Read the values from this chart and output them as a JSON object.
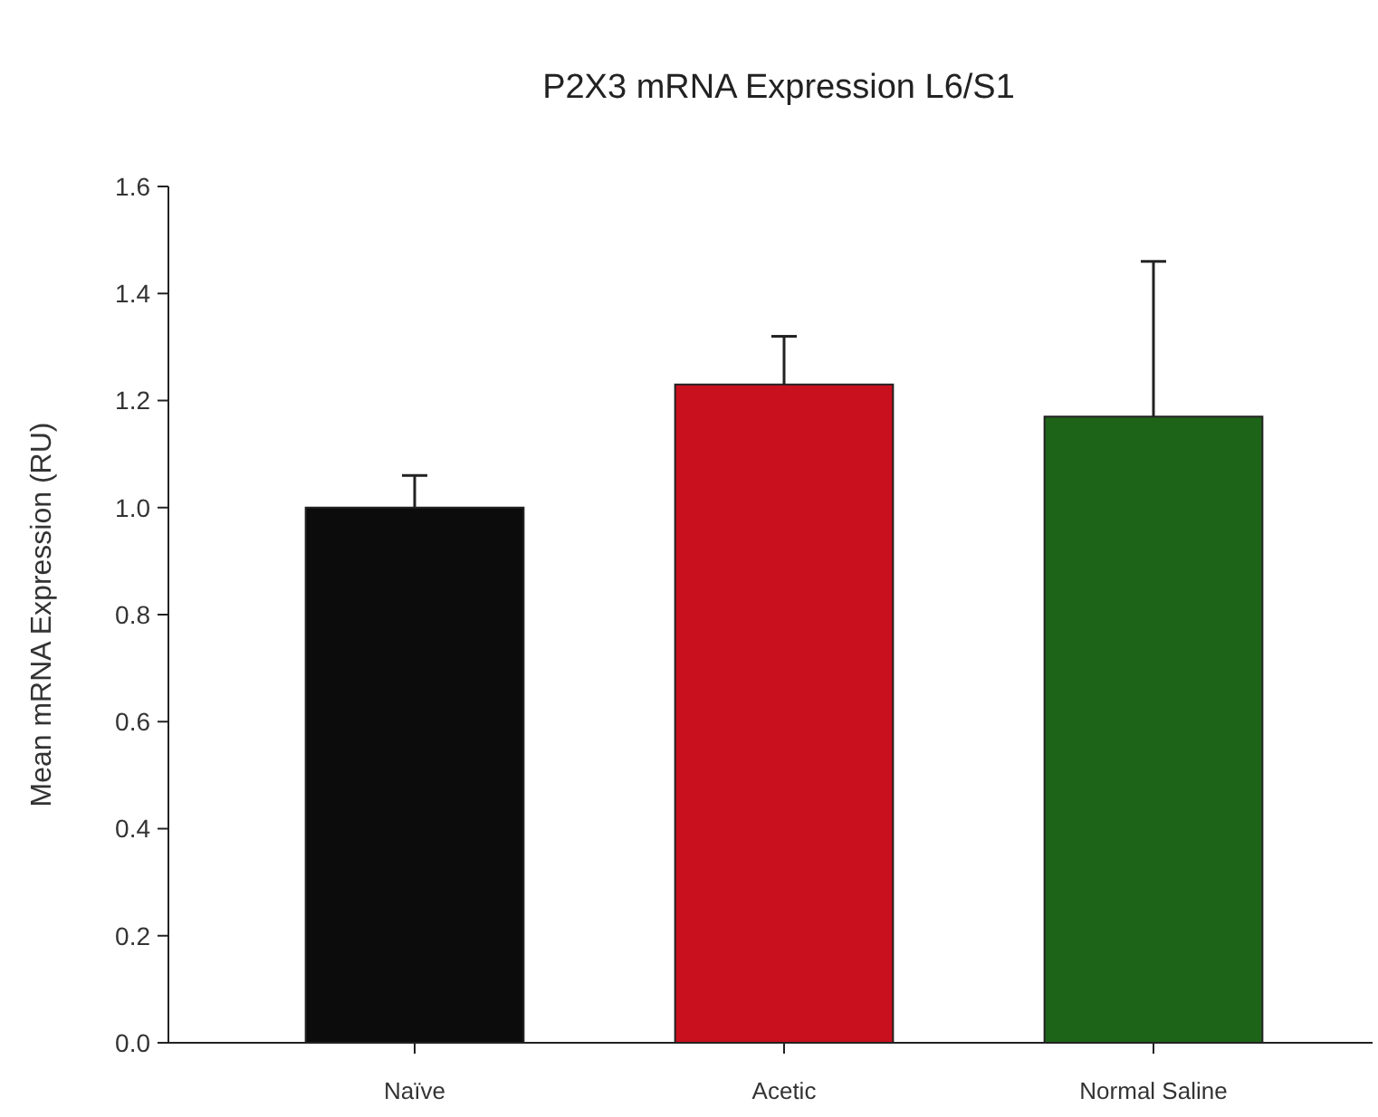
{
  "chart_data": {
    "type": "bar",
    "title": "P2X3 mRNA Expression L6/S1",
    "ylabel": "Mean mRNA Expression (RU)",
    "categories": [
      "Naïve",
      "Acetic",
      "Normal Saline"
    ],
    "values": [
      1.0,
      1.23,
      1.17
    ],
    "colors": [
      "#0c0c0c",
      "#c8101e",
      "#1e6418"
    ],
    "errors": [
      [
        1.0,
        1.06
      ],
      [
        1.23,
        1.32
      ],
      [
        1.17,
        1.46
      ]
    ],
    "ylim": [
      0,
      1.6
    ],
    "yticks": [
      {
        "value": 0,
        "label": "0.0"
      },
      {
        "value": 0.2,
        "label": "0.2"
      },
      {
        "value": 0.4,
        "label": "0.4"
      },
      {
        "value": 0.6,
        "label": "0.6"
      },
      {
        "value": 0.8,
        "label": "0.8"
      },
      {
        "value": 1,
        "label": "1.0"
      },
      {
        "value": 1.2,
        "label": "1.2"
      },
      {
        "value": 1.4,
        "label": "1.4"
      },
      {
        "value": 1.6,
        "label": "1.6"
      }
    ],
    "grid": false
  }
}
